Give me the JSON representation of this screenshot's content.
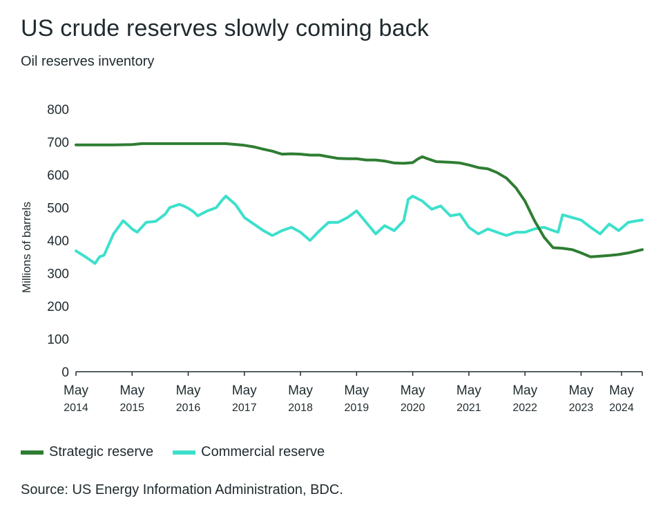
{
  "header": {
    "title": "US crude reserves slowly coming back",
    "subtitle": "Oil reserves inventory"
  },
  "legend": {
    "items": [
      {
        "label": "Strategic reserve",
        "color": "#2e7d32"
      },
      {
        "label": "Commercial reserve",
        "color": "#3de0cc"
      }
    ]
  },
  "footer": {
    "source": "Source: US Energy Information Administration, BDC."
  },
  "chart_data": {
    "type": "line",
    "title": "US crude reserves slowly coming back",
    "subtitle": "Oil reserves inventory",
    "ylabel": "Millions of barrels",
    "xlabel": "",
    "ylim": [
      0,
      800
    ],
    "yticks": [
      0,
      100,
      200,
      300,
      400,
      500,
      600,
      700,
      800
    ],
    "xlim": [
      2014.33,
      2024.42
    ],
    "xticks": [
      {
        "value": 2014.33,
        "month": "May",
        "year": "2014"
      },
      {
        "value": 2015.33,
        "month": "May",
        "year": "2015"
      },
      {
        "value": 2016.33,
        "month": "May",
        "year": "2016"
      },
      {
        "value": 2017.33,
        "month": "May",
        "year": "2017"
      },
      {
        "value": 2018.33,
        "month": "May",
        "year": "2018"
      },
      {
        "value": 2019.33,
        "month": "May",
        "year": "2019"
      },
      {
        "value": 2020.33,
        "month": "May",
        "year": "2020"
      },
      {
        "value": 2021.33,
        "month": "May",
        "year": "2021"
      },
      {
        "value": 2022.33,
        "month": "May",
        "year": "2022"
      },
      {
        "value": 2023.33,
        "month": "May",
        "year": "2023"
      },
      {
        "value": 2024.05,
        "month": "May",
        "year": "2024"
      }
    ],
    "grid": false,
    "legend_position": "bottom-left",
    "series": [
      {
        "name": "Strategic reserve",
        "color": "#2e7d32",
        "x": [
          2014.33,
          2015.0,
          2015.33,
          2015.5,
          2016.0,
          2016.5,
          2017.0,
          2017.33,
          2017.5,
          2017.67,
          2017.83,
          2018.0,
          2018.17,
          2018.33,
          2018.5,
          2018.67,
          2018.83,
          2019.0,
          2019.17,
          2019.33,
          2019.5,
          2019.67,
          2019.83,
          2020.0,
          2020.17,
          2020.33,
          2020.42,
          2020.5,
          2020.58,
          2020.75,
          2021.0,
          2021.17,
          2021.33,
          2021.5,
          2021.67,
          2021.83,
          2022.0,
          2022.17,
          2022.33,
          2022.5,
          2022.67,
          2022.83,
          2023.0,
          2023.17,
          2023.33,
          2023.5,
          2023.67,
          2023.83,
          2024.0,
          2024.2,
          2024.42
        ],
        "values": [
          691,
          691,
          692,
          695,
          695,
          695,
          695,
          690,
          685,
          678,
          672,
          663,
          664,
          663,
          660,
          660,
          655,
          650,
          649,
          649,
          645,
          645,
          642,
          636,
          635,
          637,
          648,
          655,
          650,
          640,
          638,
          636,
          630,
          622,
          618,
          607,
          590,
          560,
          520,
          460,
          410,
          378,
          376,
          372,
          362,
          350,
          352,
          354,
          357,
          363,
          372
        ]
      },
      {
        "name": "Commercial reserve",
        "color": "#3de0cc",
        "x": [
          2014.33,
          2014.5,
          2014.67,
          2014.75,
          2014.83,
          2015.0,
          2015.17,
          2015.25,
          2015.33,
          2015.42,
          2015.58,
          2015.75,
          2015.92,
          2016.0,
          2016.17,
          2016.25,
          2016.33,
          2016.42,
          2016.5,
          2016.67,
          2016.83,
          2016.92,
          2017.0,
          2017.17,
          2017.25,
          2017.33,
          2017.5,
          2017.67,
          2017.83,
          2018.0,
          2018.17,
          2018.33,
          2018.5,
          2018.67,
          2018.83,
          2019.0,
          2019.17,
          2019.33,
          2019.5,
          2019.67,
          2019.83,
          2020.0,
          2020.17,
          2020.25,
          2020.33,
          2020.5,
          2020.67,
          2020.83,
          2021.0,
          2021.17,
          2021.33,
          2021.5,
          2021.67,
          2021.83,
          2022.0,
          2022.17,
          2022.33,
          2022.5,
          2022.67,
          2022.83,
          2022.92,
          2023.0,
          2023.17,
          2023.33,
          2023.5,
          2023.67,
          2023.83,
          2024.0,
          2024.17,
          2024.33,
          2024.42
        ],
        "values": [
          368,
          350,
          330,
          350,
          355,
          420,
          460,
          448,
          435,
          425,
          455,
          458,
          480,
          500,
          510,
          505,
          498,
          488,
          475,
          490,
          500,
          520,
          535,
          510,
          490,
          470,
          450,
          430,
          415,
          430,
          440,
          425,
          400,
          430,
          455,
          455,
          470,
          490,
          455,
          420,
          445,
          430,
          460,
          525,
          535,
          520,
          495,
          505,
          475,
          480,
          440,
          420,
          435,
          425,
          415,
          425,
          425,
          435,
          440,
          430,
          425,
          478,
          470,
          462,
          440,
          420,
          450,
          430,
          455,
          460,
          462
        ]
      }
    ]
  }
}
